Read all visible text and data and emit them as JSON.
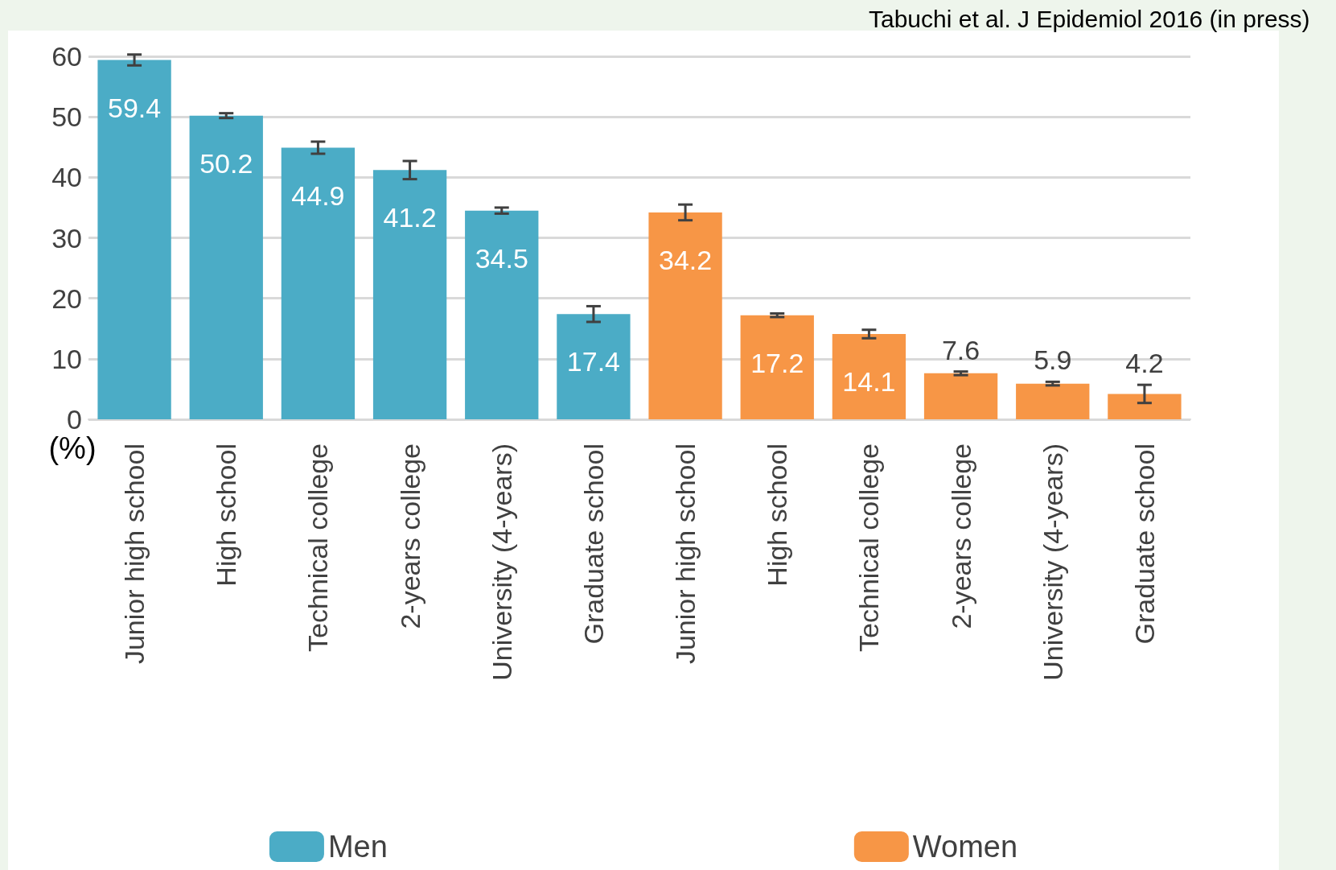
{
  "chart_data": {
    "type": "bar",
    "categories": [
      "Junior high school",
      "High school",
      "Technical college",
      "2-years college",
      "University (4-years)",
      "Graduate school",
      "Junior high school",
      "High school",
      "Technical college",
      "2-years college",
      "University (4-years)",
      "Graduate school"
    ],
    "series": [
      {
        "name": "Men",
        "color": "#4bacc6",
        "values": [
          59.4,
          50.2,
          44.9,
          41.2,
          34.5,
          17.4,
          null,
          null,
          null,
          null,
          null,
          null
        ],
        "errors": [
          0.9,
          0.4,
          1.0,
          1.5,
          0.5,
          1.3,
          null,
          null,
          null,
          null,
          null,
          null
        ]
      },
      {
        "name": "Women",
        "color": "#f79646",
        "values": [
          null,
          null,
          null,
          null,
          null,
          null,
          34.2,
          17.2,
          14.1,
          7.6,
          5.9,
          4.2
        ],
        "errors": [
          null,
          null,
          null,
          null,
          null,
          null,
          1.3,
          0.3,
          0.7,
          0.3,
          0.3,
          1.5
        ]
      }
    ],
    "ylabel": "(%)",
    "ylim": [
      0,
      60
    ],
    "yticks": [
      0,
      10,
      20,
      30,
      40,
      50,
      60
    ],
    "grid": "y",
    "legend": "bottom",
    "data_labels": true,
    "annotations": [
      "Tabuchi et al. J Epidemiol 2016 (in press)"
    ]
  }
}
